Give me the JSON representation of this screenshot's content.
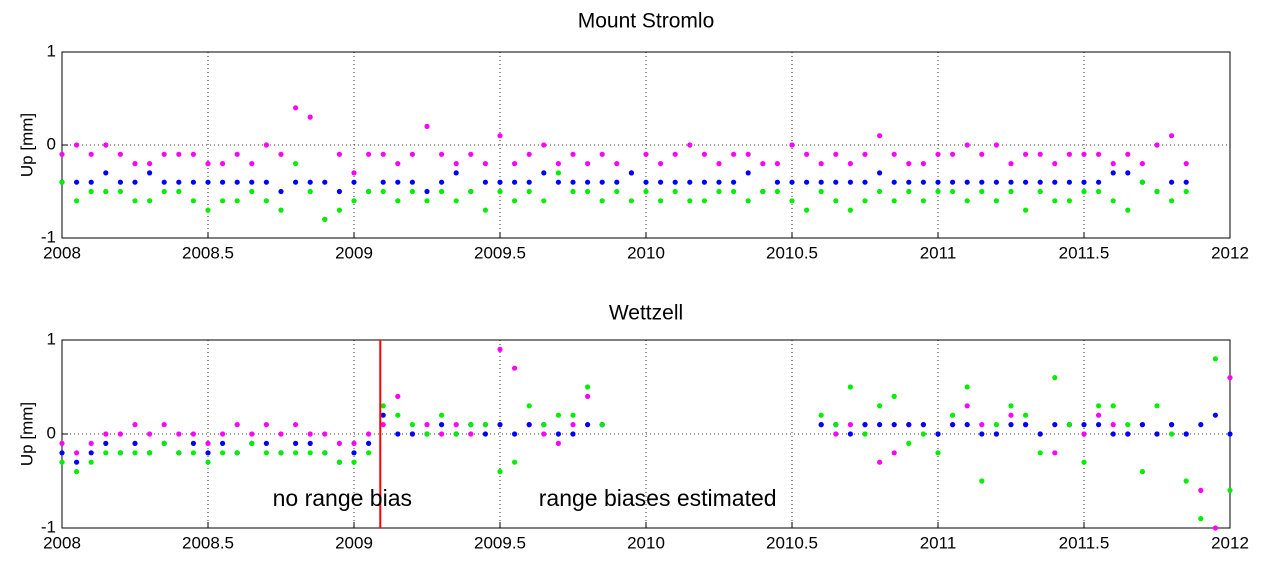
{
  "chart_data": [
    {
      "type": "scatter",
      "title": "Mount Stromlo",
      "ylabel": "Up [mm]",
      "xlim": [
        2008,
        2012
      ],
      "xticks": [
        2008,
        2008.5,
        2009,
        2009.5,
        2010,
        2010.5,
        2011,
        2011.5,
        2012
      ],
      "ylim": [
        -1,
        1
      ],
      "yticks": [
        -1,
        0,
        1
      ],
      "grid": true,
      "x": [
        2008.0,
        2008.05,
        2008.1,
        2008.15,
        2008.2,
        2008.25,
        2008.3,
        2008.35,
        2008.4,
        2008.45,
        2008.5,
        2008.55,
        2008.6,
        2008.65,
        2008.7,
        2008.75,
        2008.8,
        2008.85,
        2008.9,
        2008.95,
        2009.0,
        2009.05,
        2009.1,
        2009.15,
        2009.2,
        2009.25,
        2009.3,
        2009.35,
        2009.4,
        2009.45,
        2009.5,
        2009.55,
        2009.6,
        2009.65,
        2009.7,
        2009.75,
        2009.8,
        2009.85,
        2009.9,
        2009.95,
        2010.0,
        2010.05,
        2010.1,
        2010.15,
        2010.2,
        2010.25,
        2010.3,
        2010.35,
        2010.4,
        2010.45,
        2010.5,
        2010.55,
        2010.6,
        2010.65,
        2010.7,
        2010.75,
        2010.8,
        2010.85,
        2010.9,
        2010.95,
        2011.0,
        2011.05,
        2011.1,
        2011.15,
        2011.2,
        2011.25,
        2011.3,
        2011.35,
        2011.4,
        2011.45,
        2011.5,
        2011.55,
        2011.6,
        2011.65,
        2011.7,
        2011.75,
        2011.8,
        2011.85
      ],
      "series": [
        {
          "color": "#ff00ff",
          "values": [
            -0.1,
            0,
            -0.1,
            0,
            -0.1,
            -0.2,
            -0.2,
            -0.1,
            -0.1,
            -0.1,
            -0.2,
            -0.2,
            -0.1,
            -0.2,
            0,
            -0.1,
            0.4,
            0.3,
            -0.8,
            -0.1,
            -0.3,
            -0.1,
            -0.1,
            -0.2,
            -0.1,
            0.2,
            -0.1,
            -0.2,
            -0.1,
            -0.2,
            0.1,
            -0.2,
            -0.1,
            0,
            -0.2,
            -0.1,
            -0.2,
            -0.1,
            -0.2,
            -0.3,
            -0.1,
            -0.2,
            -0.1,
            0,
            -0.1,
            -0.2,
            -0.1,
            -0.1,
            -0.2,
            -0.2,
            0,
            -0.1,
            -0.2,
            -0.1,
            -0.2,
            -0.1,
            0.1,
            -0.1,
            -0.2,
            -0.2,
            -0.1,
            -0.1,
            0,
            -0.1,
            0,
            -0.2,
            -0.1,
            -0.1,
            -0.2,
            -0.1,
            -0.1,
            -0.1,
            -0.2,
            -0.1,
            -0.2,
            0,
            0.1,
            -0.2
          ]
        },
        {
          "color": "#0000ff",
          "values": [
            -0.4,
            -0.4,
            -0.4,
            -0.3,
            -0.4,
            -0.4,
            -0.3,
            -0.4,
            -0.4,
            -0.4,
            -0.4,
            -0.4,
            -0.4,
            -0.4,
            -0.4,
            -0.5,
            -0.4,
            -0.4,
            -0.4,
            -0.5,
            -0.4,
            -0.5,
            -0.4,
            -0.4,
            -0.4,
            -0.5,
            -0.4,
            -0.3,
            -0.5,
            -0.4,
            -0.4,
            -0.4,
            -0.4,
            -0.3,
            -0.4,
            -0.4,
            -0.4,
            -0.4,
            -0.4,
            -0.3,
            -0.4,
            -0.4,
            -0.4,
            -0.4,
            -0.4,
            -0.4,
            -0.4,
            -0.3,
            -0.5,
            -0.4,
            -0.4,
            -0.4,
            -0.4,
            -0.4,
            -0.4,
            -0.4,
            -0.3,
            -0.4,
            -0.4,
            -0.4,
            -0.4,
            -0.4,
            -0.4,
            -0.4,
            -0.4,
            -0.4,
            -0.4,
            -0.4,
            -0.4,
            -0.4,
            -0.4,
            -0.4,
            -0.3,
            -0.3,
            -0.4,
            -0.5,
            -0.4,
            -0.4
          ]
        },
        {
          "color": "#00ee00",
          "values": [
            -0.4,
            -0.6,
            -0.5,
            -0.5,
            -0.5,
            -0.6,
            -0.6,
            -0.5,
            -0.5,
            -0.6,
            -0.7,
            -0.6,
            -0.6,
            -0.5,
            -0.6,
            -0.7,
            -0.2,
            -0.5,
            -0.8,
            -0.7,
            -0.6,
            -0.5,
            -0.5,
            -0.6,
            -0.5,
            -0.6,
            -0.5,
            -0.6,
            -0.5,
            -0.7,
            -0.5,
            -0.6,
            -0.5,
            -0.6,
            -0.3,
            -0.5,
            -0.5,
            -0.6,
            -0.5,
            -0.6,
            -0.5,
            -0.6,
            -0.5,
            -0.6,
            -0.6,
            -0.5,
            -0.5,
            -0.6,
            -0.5,
            -0.5,
            -0.6,
            -0.7,
            -0.5,
            -0.6,
            -0.7,
            -0.6,
            -0.5,
            -0.6,
            -0.5,
            -0.6,
            -0.5,
            -0.5,
            -0.6,
            -0.5,
            -0.6,
            -0.5,
            -0.7,
            -0.5,
            -0.6,
            -0.6,
            -0.5,
            -0.5,
            -0.6,
            -0.7,
            -0.4,
            -0.5,
            -0.6,
            -0.5
          ]
        }
      ]
    },
    {
      "type": "scatter",
      "title": "Wettzell",
      "ylabel": "Up [mm]",
      "xlim": [
        2008,
        2012
      ],
      "xticks": [
        2008,
        2008.5,
        2009,
        2009.5,
        2010,
        2010.5,
        2011,
        2011.5,
        2012
      ],
      "ylim": [
        -1,
        1
      ],
      "yticks": [
        -1,
        0,
        1
      ],
      "grid": true,
      "vline": {
        "x": 2009.09,
        "color": "#ff0000"
      },
      "annotations": [
        {
          "text": "no range bias",
          "color": "#ff0000"
        },
        {
          "text": "range biases estimated",
          "color": "#ff0000"
        }
      ],
      "x": [
        2008.0,
        2008.05,
        2008.1,
        2008.15,
        2008.2,
        2008.25,
        2008.3,
        2008.35,
        2008.4,
        2008.45,
        2008.5,
        2008.55,
        2008.6,
        2008.65,
        2008.7,
        2008.75,
        2008.8,
        2008.85,
        2008.9,
        2008.95,
        2009.0,
        2009.05,
        2009.1,
        2009.15,
        2009.2,
        2009.25,
        2009.3,
        2009.35,
        2009.4,
        2009.45,
        2009.5,
        2009.55,
        2009.6,
        2009.65,
        2009.7,
        2009.75,
        2009.8,
        2009.85,
        2010.6,
        2010.65,
        2010.7,
        2010.75,
        2010.8,
        2010.85,
        2010.9,
        2010.95,
        2011.0,
        2011.05,
        2011.1,
        2011.15,
        2011.2,
        2011.25,
        2011.3,
        2011.35,
        2011.4,
        2011.45,
        2011.5,
        2011.55,
        2011.6,
        2011.65,
        2011.7,
        2011.75,
        2011.8,
        2011.85,
        2011.9,
        2011.95,
        2012.0
      ],
      "series": [
        {
          "color": "#ff00ff",
          "values": [
            -0.1,
            -0.2,
            -0.1,
            0,
            0,
            0.1,
            0,
            0.1,
            0,
            0,
            -0.1,
            0,
            0.1,
            0,
            0.1,
            0,
            0.1,
            0,
            0,
            -0.1,
            -0.1,
            0,
            0.1,
            0.4,
            0,
            0.1,
            0,
            0.1,
            0,
            0.1,
            0.9,
            0.7,
            0.1,
            0,
            -0.1,
            0.1,
            0.4,
            0.1,
            0.1,
            0,
            0.1,
            0.1,
            -0.3,
            -0.2,
            0.1,
            0.1,
            0,
            0.1,
            0.3,
            0.1,
            0,
            0.2,
            0.1,
            0,
            -0.2,
            0.1,
            0,
            0.2,
            0.1,
            0,
            0.1,
            0,
            0.1,
            0,
            -0.6,
            -1,
            0.6
          ]
        },
        {
          "color": "#0000ff",
          "values": [
            -0.2,
            -0.3,
            -0.2,
            -0.1,
            -0.2,
            -0.1,
            -0.2,
            -0.1,
            -0.2,
            -0.1,
            -0.2,
            -0.1,
            -0.2,
            -0.1,
            -0.1,
            -0.2,
            -0.1,
            -0.1,
            -0.2,
            -0.3,
            -0.2,
            -0.1,
            0.2,
            0,
            0,
            0,
            0.1,
            0,
            0.1,
            0,
            0.1,
            0,
            0.1,
            0.1,
            0,
            0,
            0.1,
            0.1,
            0.1,
            0.1,
            0,
            0.1,
            0.1,
            0.1,
            0.1,
            0.1,
            0,
            0.1,
            0.1,
            0,
            0,
            0.1,
            0.1,
            0,
            0.1,
            0.1,
            0.1,
            0.1,
            0,
            0,
            0.1,
            0,
            0.1,
            0,
            0.1,
            0.2,
            0
          ]
        },
        {
          "color": "#00ee00",
          "values": [
            -0.3,
            -0.4,
            -0.3,
            -0.2,
            -0.2,
            -0.2,
            -0.2,
            -0.1,
            -0.2,
            -0.2,
            -0.3,
            -0.2,
            -0.2,
            -0.1,
            -0.2,
            -0.2,
            -0.2,
            -0.2,
            -0.2,
            -0.3,
            -0.3,
            -0.2,
            0.3,
            0.2,
            0.1,
            0,
            0.2,
            0,
            0.1,
            0.1,
            -0.4,
            -0.3,
            0.3,
            0.1,
            0.2,
            0.2,
            0.5,
            0.1,
            0.2,
            0.1,
            0.5,
            0,
            0.3,
            0.4,
            -0.1,
            0,
            -0.2,
            0.2,
            0.5,
            -0.5,
            0.1,
            0.3,
            0.2,
            -0.2,
            0.6,
            0.1,
            -0.3,
            0.3,
            0.3,
            0.1,
            -0.4,
            0.3,
            0,
            -0.5,
            -0.9,
            0.8,
            -0.6
          ]
        }
      ]
    }
  ]
}
